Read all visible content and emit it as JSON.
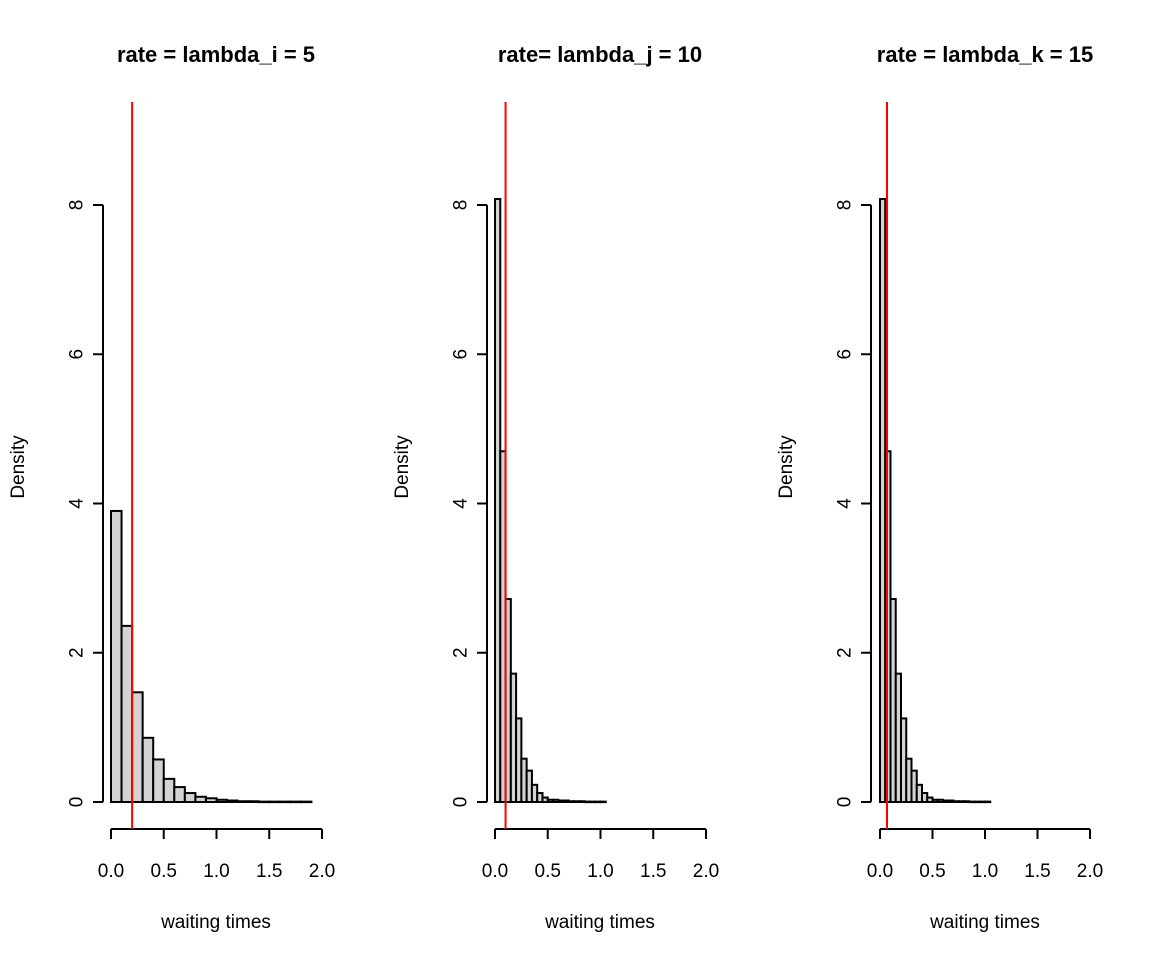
{
  "chart_data": [
    {
      "type": "bar",
      "title": "rate = lambda_i = 5",
      "xlabel": "waiting times",
      "ylabel": "Density",
      "xlim": [
        0,
        2
      ],
      "ylim": [
        0,
        8
      ],
      "x_ticks": [
        "0.0",
        "0.5",
        "1.0",
        "1.5",
        "2.0"
      ],
      "y_ticks": [
        "0",
        "2",
        "4",
        "6",
        "8"
      ],
      "bin_width": 0.1,
      "bins": [
        0.0,
        0.1,
        0.2,
        0.3,
        0.4,
        0.5,
        0.6,
        0.7,
        0.8,
        0.9,
        1.0,
        1.1,
        1.2,
        1.3,
        1.4,
        1.5,
        1.6,
        1.7,
        1.8
      ],
      "values": [
        3.9,
        2.36,
        1.47,
        0.86,
        0.57,
        0.31,
        0.2,
        0.12,
        0.07,
        0.05,
        0.03,
        0.02,
        0.01,
        0.01,
        0.005,
        0.005,
        0.005,
        0.005,
        0.005
      ],
      "reference_line": {
        "x": 0.2,
        "color": "#ff0000"
      }
    },
    {
      "type": "bar",
      "title": "rate= lambda_j = 10",
      "xlabel": "waiting times",
      "ylabel": "Density",
      "xlim": [
        0,
        2
      ],
      "ylim": [
        0,
        8
      ],
      "x_ticks": [
        "0.0",
        "0.5",
        "1.0",
        "1.5",
        "2.0"
      ],
      "y_ticks": [
        "0",
        "2",
        "4",
        "6",
        "8"
      ],
      "bin_width": 0.05,
      "bins": [
        0.0,
        0.05,
        0.1,
        0.15,
        0.2,
        0.25,
        0.3,
        0.35,
        0.4,
        0.45,
        0.5,
        0.55,
        0.6,
        0.65,
        0.7,
        0.75,
        0.8,
        0.85,
        0.9,
        0.95,
        1.0
      ],
      "values": [
        8.08,
        4.7,
        2.72,
        1.72,
        1.12,
        0.58,
        0.42,
        0.23,
        0.12,
        0.06,
        0.03,
        0.03,
        0.02,
        0.02,
        0.01,
        0.01,
        0.01,
        0.005,
        0.005,
        0.005,
        0.005
      ],
      "reference_line": {
        "x": 0.1,
        "color": "#ff0000"
      }
    },
    {
      "type": "bar",
      "title": "rate = lambda_k = 15",
      "xlabel": "waiting times",
      "ylabel": "Density",
      "xlim": [
        0,
        2
      ],
      "ylim": [
        0,
        8
      ],
      "x_ticks": [
        "0.0",
        "0.5",
        "1.0",
        "1.5",
        "2.0"
      ],
      "y_ticks": [
        "0",
        "2",
        "4",
        "6",
        "8"
      ],
      "bin_width": 0.05,
      "bins": [
        0.0,
        0.05,
        0.1,
        0.15,
        0.2,
        0.25,
        0.3,
        0.35,
        0.4,
        0.45,
        0.5,
        0.55,
        0.6,
        0.65,
        0.7,
        0.75,
        0.8,
        0.85,
        0.9,
        0.95,
        1.0
      ],
      "values": [
        8.08,
        4.7,
        2.72,
        1.72,
        1.12,
        0.58,
        0.42,
        0.23,
        0.12,
        0.06,
        0.03,
        0.03,
        0.02,
        0.02,
        0.01,
        0.01,
        0.01,
        0.005,
        0.005,
        0.005,
        0.005
      ],
      "reference_line": {
        "x": 0.0667,
        "color": "#ff0000"
      }
    }
  ]
}
